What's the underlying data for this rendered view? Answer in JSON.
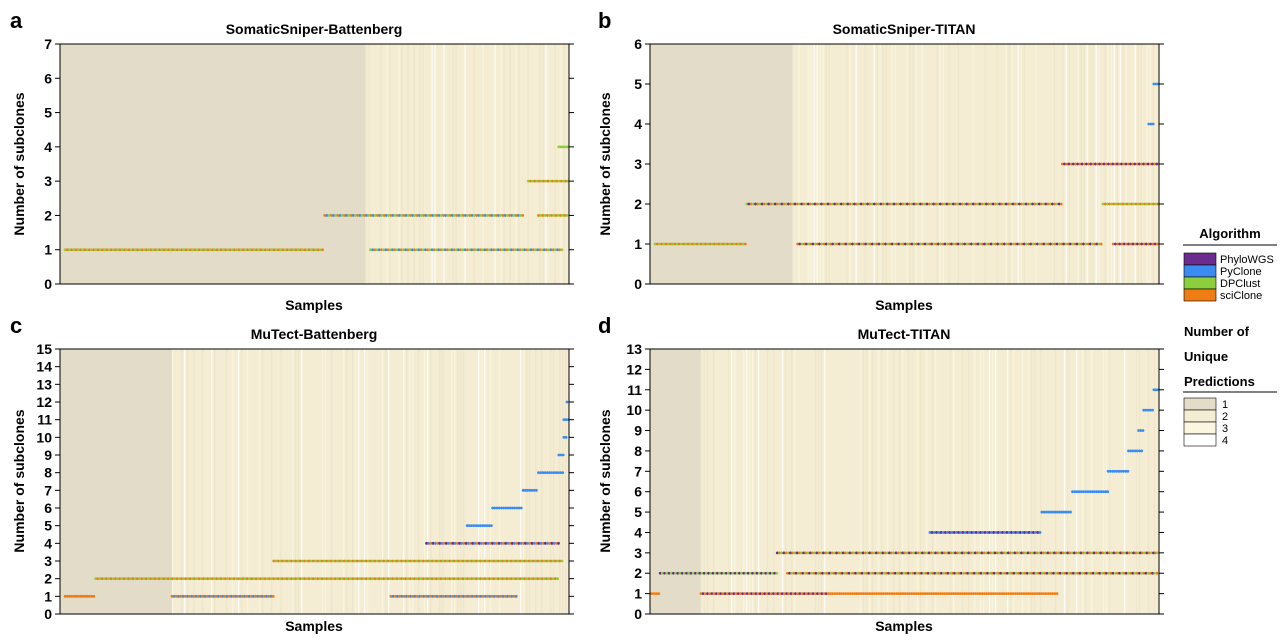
{
  "figure": {
    "xlabel": "Samples",
    "ylabel": "Number of subclones"
  },
  "legend": {
    "algorithm_title": "Algorithm",
    "algorithms": [
      {
        "name": "PhyloWGS",
        "color": "#6a2c8f"
      },
      {
        "name": "PyClone",
        "color": "#3b8cf0"
      },
      {
        "name": "DPClust",
        "color": "#8ccf3c"
      },
      {
        "name": "sciClone",
        "color": "#f07d14"
      }
    ],
    "unique_title_lines": [
      "Number of",
      "Unique",
      "Predictions"
    ],
    "unique": [
      {
        "label": "1",
        "color": "#e3dcc8"
      },
      {
        "label": "2",
        "color": "#f4edd3"
      },
      {
        "label": "3",
        "color": "#fbf6e0"
      },
      {
        "label": "4",
        "color": "#ffffff"
      }
    ]
  },
  "chart_data": [
    {
      "panel_letter": "a",
      "type": "scatter",
      "title": "SomaticSniper-Battenberg",
      "xlabel": "Samples",
      "ylabel": "Number of subclones",
      "ylim": [
        0,
        7
      ],
      "yticks": [
        0,
        1,
        2,
        3,
        4,
        5,
        6,
        7
      ],
      "x_range": [
        0,
        100
      ],
      "background_blocks": [
        {
          "x": [
            0,
            60
          ],
          "unique_predictions": 1
        },
        {
          "x": [
            60,
            100
          ],
          "unique_predictions": 2
        }
      ],
      "segments": [
        {
          "y": 1,
          "x": [
            1,
            52
          ],
          "algorithms": [
            "DPClust",
            "sciClone"
          ]
        },
        {
          "y": 2,
          "x": [
            52,
            91
          ],
          "algorithms": [
            "DPClust",
            "sciClone",
            "PyClone"
          ]
        },
        {
          "y": 1,
          "x": [
            61,
            99
          ],
          "algorithms": [
            "PyClone",
            "sciClone",
            "DPClust"
          ]
        },
        {
          "y": 2,
          "x": [
            94,
            100
          ],
          "algorithms": [
            "DPClust",
            "sciClone"
          ]
        },
        {
          "y": 3,
          "x": [
            92,
            100
          ],
          "algorithms": [
            "DPClust",
            "sciClone"
          ]
        },
        {
          "y": 4,
          "x": [
            98,
            100
          ],
          "algorithms": [
            "DPClust"
          ]
        }
      ]
    },
    {
      "panel_letter": "b",
      "type": "scatter",
      "title": "SomaticSniper-TITAN",
      "xlabel": "Samples",
      "ylabel": "Number of subclones",
      "ylim": [
        0,
        6
      ],
      "yticks": [
        0,
        1,
        2,
        3,
        4,
        5,
        6
      ],
      "x_range": [
        0,
        100
      ],
      "background_blocks": [
        {
          "x": [
            0,
            28
          ],
          "unique_predictions": 1
        },
        {
          "x": [
            28,
            100
          ],
          "unique_predictions": 2
        }
      ],
      "segments": [
        {
          "y": 1,
          "x": [
            1,
            19
          ],
          "algorithms": [
            "DPClust",
            "sciClone"
          ]
        },
        {
          "y": 2,
          "x": [
            19,
            81
          ],
          "algorithms": [
            "sciClone",
            "DPClust",
            "PhyloWGS"
          ]
        },
        {
          "y": 1,
          "x": [
            29,
            89
          ],
          "algorithms": [
            "PhyloWGS",
            "DPClust",
            "sciClone"
          ]
        },
        {
          "y": 3,
          "x": [
            81,
            100
          ],
          "algorithms": [
            "PhyloWGS",
            "sciClone"
          ]
        },
        {
          "y": 1,
          "x": [
            91,
            100
          ],
          "algorithms": [
            "sciClone",
            "PhyloWGS"
          ]
        },
        {
          "y": 2,
          "x": [
            89,
            100
          ],
          "algorithms": [
            "sciClone",
            "DPClust"
          ]
        },
        {
          "y": 4,
          "x": [
            98,
            99
          ],
          "algorithms": [
            "PyClone"
          ]
        },
        {
          "y": 5,
          "x": [
            99,
            100
          ],
          "algorithms": [
            "PyClone"
          ]
        }
      ]
    },
    {
      "panel_letter": "c",
      "type": "scatter",
      "title": "MuTect-Battenberg",
      "xlabel": "Samples",
      "ylabel": "Number of subclones",
      "ylim": [
        0,
        15
      ],
      "yticks": [
        0,
        1,
        2,
        3,
        4,
        5,
        6,
        7,
        8,
        9,
        10,
        11,
        12,
        13,
        14,
        15
      ],
      "x_range": [
        0,
        100
      ],
      "background_blocks": [
        {
          "x": [
            0,
            22
          ],
          "unique_predictions": 1
        },
        {
          "x": [
            22,
            100
          ],
          "unique_predictions": 2
        }
      ],
      "segments": [
        {
          "y": 1,
          "x": [
            1,
            7
          ],
          "algorithms": [
            "sciClone"
          ]
        },
        {
          "y": 2,
          "x": [
            7,
            98
          ],
          "algorithms": [
            "sciClone",
            "DPClust"
          ]
        },
        {
          "y": 1,
          "x": [
            22,
            42
          ],
          "algorithms": [
            "sciClone",
            "PyClone"
          ]
        },
        {
          "y": 3,
          "x": [
            42,
            99
          ],
          "algorithms": [
            "DPClust",
            "sciClone"
          ]
        },
        {
          "y": 1,
          "x": [
            65,
            90
          ],
          "algorithms": [
            "sciClone",
            "PyClone"
          ]
        },
        {
          "y": 4,
          "x": [
            72,
            98
          ],
          "algorithms": [
            "PyClone",
            "sciClone",
            "PhyloWGS"
          ]
        },
        {
          "y": 5,
          "x": [
            80,
            85
          ],
          "algorithms": [
            "PyClone"
          ]
        },
        {
          "y": 6,
          "x": [
            85,
            91
          ],
          "algorithms": [
            "PyClone"
          ]
        },
        {
          "y": 7,
          "x": [
            91,
            94
          ],
          "algorithms": [
            "PyClone"
          ]
        },
        {
          "y": 8,
          "x": [
            94,
            99
          ],
          "algorithms": [
            "PyClone"
          ]
        },
        {
          "y": 9,
          "x": [
            98,
            99
          ],
          "algorithms": [
            "PyClone"
          ]
        },
        {
          "y": 10,
          "x": [
            99,
            99.6
          ],
          "algorithms": [
            "PyClone"
          ]
        },
        {
          "y": 11,
          "x": [
            99,
            100
          ],
          "algorithms": [
            "PyClone"
          ]
        },
        {
          "y": 12,
          "x": [
            99.6,
            100
          ],
          "algorithms": [
            "PyClone"
          ]
        }
      ]
    },
    {
      "panel_letter": "d",
      "type": "scatter",
      "title": "MuTect-TITAN",
      "xlabel": "Samples",
      "ylabel": "Number of subclones",
      "ylim": [
        0,
        13
      ],
      "yticks": [
        0,
        1,
        2,
        3,
        4,
        5,
        6,
        7,
        8,
        9,
        10,
        11,
        12,
        13
      ],
      "x_range": [
        0,
        100
      ],
      "background_blocks": [
        {
          "x": [
            0,
            10
          ],
          "unique_predictions": 1
        },
        {
          "x": [
            10,
            100
          ],
          "unique_predictions": 2
        }
      ],
      "segments": [
        {
          "y": 1,
          "x": [
            0,
            2
          ],
          "algorithms": [
            "sciClone"
          ]
        },
        {
          "y": 2,
          "x": [
            2,
            25
          ],
          "algorithms": [
            "DPClust",
            "PhyloWGS"
          ]
        },
        {
          "y": 1,
          "x": [
            10,
            35
          ],
          "algorithms": [
            "sciClone",
            "PhyloWGS"
          ]
        },
        {
          "y": 3,
          "x": [
            25,
            100
          ],
          "algorithms": [
            "PhyloWGS",
            "sciClone",
            "DPClust"
          ]
        },
        {
          "y": 2,
          "x": [
            27,
            100
          ],
          "algorithms": [
            "DPClust",
            "sciClone",
            "PhyloWGS"
          ]
        },
        {
          "y": 1,
          "x": [
            35,
            80
          ],
          "algorithms": [
            "sciClone"
          ]
        },
        {
          "y": 4,
          "x": [
            55,
            77
          ],
          "algorithms": [
            "PyClone",
            "PhyloWGS"
          ]
        },
        {
          "y": 5,
          "x": [
            77,
            83
          ],
          "algorithms": [
            "PyClone"
          ]
        },
        {
          "y": 6,
          "x": [
            83,
            90
          ],
          "algorithms": [
            "PyClone"
          ]
        },
        {
          "y": 7,
          "x": [
            90,
            94
          ],
          "algorithms": [
            "PyClone"
          ]
        },
        {
          "y": 8,
          "x": [
            94,
            97
          ],
          "algorithms": [
            "PyClone"
          ]
        },
        {
          "y": 9,
          "x": [
            96,
            97
          ],
          "algorithms": [
            "PyClone"
          ]
        },
        {
          "y": 10,
          "x": [
            97,
            99
          ],
          "algorithms": [
            "PyClone"
          ]
        },
        {
          "y": 11,
          "x": [
            99,
            100
          ],
          "algorithms": [
            "PyClone"
          ]
        }
      ]
    }
  ]
}
